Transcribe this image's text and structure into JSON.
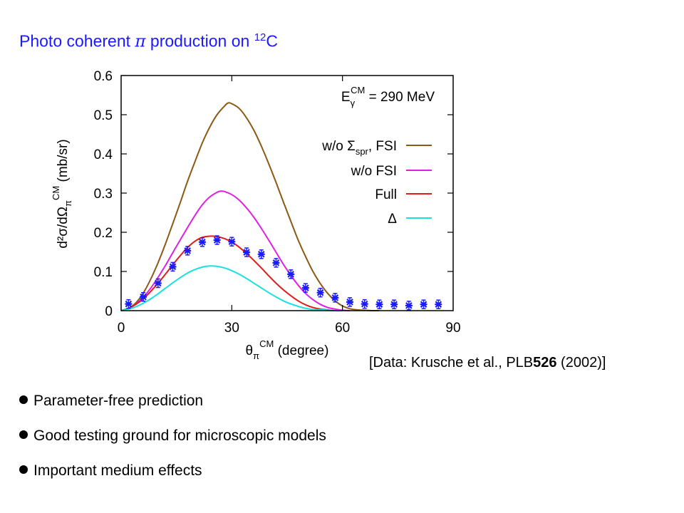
{
  "slide": {
    "title_pre": "Photo coherent",
    "title_pi": "π",
    "title_mid": "production on",
    "title_sup": "12",
    "title_post": "C",
    "citation_pre": "[Data: Krusche et al., PLB",
    "citation_vol": "526",
    "citation_post": " (2002)]",
    "bullets": [
      "Parameter-free prediction",
      "Good testing ground for microscopic models",
      "Important medium effects"
    ]
  },
  "chart_data": {
    "type": "line",
    "xlim": [
      0,
      90
    ],
    "ylim": [
      0,
      0.6
    ],
    "xticks": [
      "0",
      "30",
      "60",
      "90"
    ],
    "xtick_values": [
      0,
      30,
      60,
      90
    ],
    "yticks": [
      "0",
      "0.1",
      "0.2",
      "0.3",
      "0.4",
      "0.5",
      "0.6"
    ],
    "ytick_values": [
      0,
      0.1,
      0.2,
      0.3,
      0.4,
      0.5,
      0.6
    ],
    "xlabel": {
      "base": "θ",
      "sub": "π",
      "sup": "CM",
      "rest": " (degree)"
    },
    "ylabel": {
      "text": "d²σ/dΩ",
      "sub": "π",
      "sup": "CM",
      "rest": " (mb/sr)"
    },
    "annotation": {
      "base": "E",
      "sub": "γ",
      "sup": "CM",
      "rest": " = 290 MeV"
    },
    "legend_position": "top-right",
    "grid": false,
    "series": [
      {
        "name": "w/o Σspr, FSI",
        "legend": {
          "pre": "w/o Σ",
          "sub": "spr",
          "post": ", FSI"
        },
        "color": "#8b5a14",
        "x": [
          0,
          2,
          4,
          6,
          8,
          10,
          12,
          14,
          16,
          18,
          20,
          22,
          24,
          26,
          28,
          29,
          30,
          32,
          34,
          36,
          38,
          40,
          42,
          44,
          46,
          48,
          50,
          52,
          54,
          56,
          58,
          60,
          62,
          64,
          66,
          68,
          70
        ],
        "y": [
          0.0,
          0.006,
          0.02,
          0.045,
          0.08,
          0.122,
          0.17,
          0.222,
          0.275,
          0.33,
          0.38,
          0.428,
          0.468,
          0.5,
          0.522,
          0.53,
          0.528,
          0.516,
          0.492,
          0.46,
          0.42,
          0.375,
          0.327,
          0.277,
          0.228,
          0.18,
          0.138,
          0.1,
          0.069,
          0.044,
          0.025,
          0.012,
          0.005,
          0.002,
          0.001,
          0.0,
          0.0
        ]
      },
      {
        "name": "w/o FSI",
        "legend": {
          "pre": "w/o FSI",
          "sub": "",
          "post": ""
        },
        "color": "#e020e0",
        "x": [
          0,
          2,
          4,
          6,
          8,
          10,
          12,
          14,
          16,
          18,
          20,
          22,
          24,
          26,
          27,
          28,
          30,
          32,
          34,
          36,
          38,
          40,
          42,
          44,
          46,
          48,
          50,
          52,
          54,
          56,
          58,
          60,
          62
        ],
        "y": [
          0.0,
          0.005,
          0.017,
          0.034,
          0.057,
          0.085,
          0.115,
          0.148,
          0.18,
          0.212,
          0.243,
          0.27,
          0.29,
          0.302,
          0.305,
          0.304,
          0.296,
          0.282,
          0.262,
          0.238,
          0.21,
          0.18,
          0.149,
          0.118,
          0.09,
          0.065,
          0.044,
          0.028,
          0.016,
          0.008,
          0.004,
          0.001,
          0.0
        ]
      },
      {
        "name": "Full",
        "legend": {
          "pre": "Full",
          "sub": "",
          "post": ""
        },
        "color": "#e01c1c",
        "x": [
          0,
          2,
          4,
          6,
          8,
          10,
          12,
          14,
          16,
          18,
          20,
          22,
          24,
          26,
          28,
          30,
          32,
          34,
          36,
          38,
          40,
          42,
          44,
          46,
          48,
          50,
          52,
          54,
          56,
          58,
          60
        ],
        "y": [
          0.0,
          0.006,
          0.016,
          0.03,
          0.049,
          0.07,
          0.093,
          0.117,
          0.14,
          0.161,
          0.177,
          0.187,
          0.19,
          0.189,
          0.184,
          0.175,
          0.162,
          0.146,
          0.128,
          0.109,
          0.089,
          0.07,
          0.053,
          0.038,
          0.025,
          0.015,
          0.008,
          0.004,
          0.002,
          0.0,
          0.0
        ]
      },
      {
        "name": "Δ",
        "legend": {
          "pre": "Δ",
          "sub": "",
          "post": ""
        },
        "color": "#1ae0e0",
        "x": [
          0,
          2,
          4,
          6,
          8,
          10,
          12,
          14,
          16,
          18,
          20,
          22,
          24,
          26,
          28,
          30,
          32,
          34,
          36,
          38,
          40,
          42,
          44,
          46,
          48,
          50,
          52,
          54,
          56,
          58,
          60
        ],
        "y": [
          0.0,
          0.004,
          0.01,
          0.019,
          0.03,
          0.043,
          0.057,
          0.071,
          0.084,
          0.096,
          0.105,
          0.111,
          0.114,
          0.113,
          0.109,
          0.102,
          0.093,
          0.082,
          0.07,
          0.058,
          0.046,
          0.035,
          0.025,
          0.017,
          0.011,
          0.006,
          0.003,
          0.002,
          0.001,
          0.0,
          0.0
        ]
      }
    ],
    "data_points": {
      "color": "#1a1aff",
      "x": [
        2,
        6,
        10,
        14,
        18,
        22,
        26,
        30,
        34,
        38,
        42,
        46,
        50,
        54,
        58,
        62,
        66,
        70,
        74,
        78,
        82,
        86
      ],
      "y": [
        0.017,
        0.035,
        0.07,
        0.112,
        0.153,
        0.175,
        0.18,
        0.176,
        0.149,
        0.144,
        0.122,
        0.093,
        0.058,
        0.046,
        0.033,
        0.022,
        0.017,
        0.016,
        0.016,
        0.013,
        0.016,
        0.016
      ]
    }
  }
}
